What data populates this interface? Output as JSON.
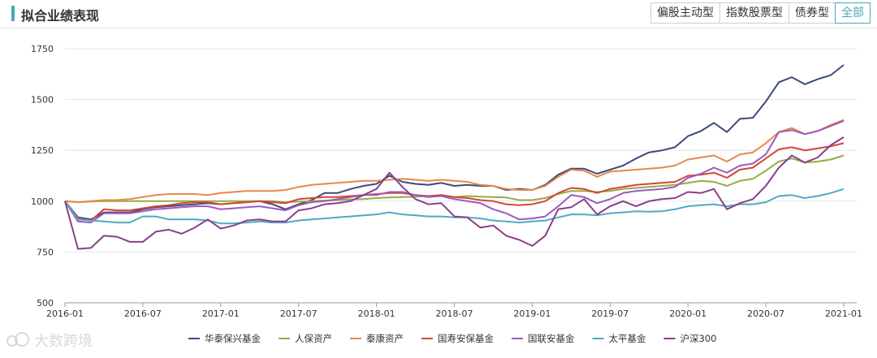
{
  "header": {
    "title": "拟合业绩表现",
    "tabs": [
      {
        "label": "偏股主动型",
        "active": false
      },
      {
        "label": "指数股票型",
        "active": false
      },
      {
        "label": "债券型",
        "active": false
      },
      {
        "label": "全部",
        "active": true
      }
    ]
  },
  "watermark": "大数跨境",
  "colors": {
    "accent": "#48a8b8",
    "grid": "#e6e6e6",
    "axis": "#333333"
  },
  "chart_data": {
    "type": "line",
    "title": "",
    "xlabel": "",
    "ylabel": "",
    "ylim": [
      500,
      1750
    ],
    "yticks": [
      500,
      750,
      1000,
      1250,
      1500,
      1750
    ],
    "xrange": [
      "2016-01",
      "2021-02"
    ],
    "xticks": [
      "2016-01",
      "2016-07",
      "2017-01",
      "2017-07",
      "2018-01",
      "2018-07",
      "2019-01",
      "2019-07",
      "2020-01",
      "2020-07",
      "2021-01"
    ],
    "grid": "horizontal",
    "legend": "bottom",
    "x": [
      "2016-01",
      "2016-02",
      "2016-03",
      "2016-04",
      "2016-05",
      "2016-06",
      "2016-07",
      "2016-08",
      "2016-09",
      "2016-10",
      "2016-11",
      "2016-12",
      "2017-01",
      "2017-02",
      "2017-03",
      "2017-04",
      "2017-05",
      "2017-06",
      "2017-07",
      "2017-08",
      "2017-09",
      "2017-10",
      "2017-11",
      "2017-12",
      "2018-01",
      "2018-02",
      "2018-03",
      "2018-04",
      "2018-05",
      "2018-06",
      "2018-07",
      "2018-08",
      "2018-09",
      "2018-10",
      "2018-11",
      "2018-12",
      "2019-01",
      "2019-02",
      "2019-03",
      "2019-04",
      "2019-05",
      "2019-06",
      "2019-07",
      "2019-08",
      "2019-09",
      "2019-10",
      "2019-11",
      "2019-12",
      "2020-01",
      "2020-02",
      "2020-03",
      "2020-04",
      "2020-05",
      "2020-06",
      "2020-07",
      "2020-08",
      "2020-09",
      "2020-10",
      "2020-11",
      "2020-12",
      "2021-01"
    ],
    "series": [
      {
        "name": "华泰保兴基金",
        "color": "#3d4a7f",
        "values": [
          1000,
          920,
          910,
          945,
          945,
          945,
          960,
          970,
          975,
          980,
          985,
          990,
          985,
          990,
          995,
          1000,
          985,
          960,
          985,
          1005,
          1040,
          1040,
          1060,
          1075,
          1085,
          1125,
          1095,
          1085,
          1080,
          1090,
          1075,
          1080,
          1075,
          1075,
          1055,
          1060,
          1055,
          1080,
          1130,
          1160,
          1160,
          1135,
          1155,
          1175,
          1210,
          1240,
          1250,
          1265,
          1320,
          1345,
          1385,
          1340,
          1405,
          1410,
          1490,
          1585,
          1610,
          1575,
          1600,
          1620,
          1670
        ]
      },
      {
        "name": "人保资产",
        "color": "#95ac40",
        "values": [
          1000,
          995,
          998,
          1000,
          1000,
          1000,
          1000,
          1000,
          1000,
          1000,
          1000,
          1000,
          1000,
          1000,
          1000,
          1000,
          1000,
          995,
          998,
          1000,
          1003,
          1005,
          1008,
          1010,
          1015,
          1018,
          1020,
          1022,
          1025,
          1025,
          1020,
          1025,
          1022,
          1020,
          1018,
          1005,
          1005,
          1015,
          1035,
          1050,
          1050,
          1045,
          1050,
          1060,
          1065,
          1070,
          1075,
          1080,
          1090,
          1100,
          1095,
          1075,
          1100,
          1110,
          1150,
          1195,
          1210,
          1190,
          1195,
          1205,
          1225
        ]
      },
      {
        "name": "泰康资产",
        "color": "#e9874a",
        "values": [
          1000,
          995,
          1000,
          1005,
          1005,
          1010,
          1020,
          1030,
          1035,
          1035,
          1035,
          1030,
          1040,
          1045,
          1050,
          1050,
          1050,
          1055,
          1070,
          1080,
          1085,
          1090,
          1095,
          1100,
          1100,
          1105,
          1110,
          1105,
          1100,
          1105,
          1100,
          1095,
          1080,
          1075,
          1060,
          1055,
          1055,
          1075,
          1120,
          1155,
          1150,
          1120,
          1145,
          1150,
          1155,
          1160,
          1165,
          1175,
          1205,
          1215,
          1225,
          1195,
          1230,
          1240,
          1285,
          1340,
          1360,
          1330,
          1345,
          1375,
          1400
        ]
      },
      {
        "name": "国寿安保基金",
        "color": "#d54535",
        "values": [
          1000,
          915,
          905,
          960,
          955,
          955,
          965,
          975,
          980,
          990,
          995,
          995,
          985,
          990,
          995,
          1000,
          995,
          990,
          1010,
          1015,
          1020,
          1020,
          1025,
          1030,
          1035,
          1040,
          1040,
          1030,
          1025,
          1030,
          1020,
          1015,
          1005,
          1000,
          985,
          980,
          985,
          1000,
          1040,
          1065,
          1060,
          1040,
          1060,
          1070,
          1080,
          1085,
          1090,
          1095,
          1125,
          1130,
          1140,
          1115,
          1155,
          1165,
          1210,
          1255,
          1265,
          1250,
          1260,
          1270,
          1285
        ]
      },
      {
        "name": "国联安基金",
        "color": "#9b5ac0",
        "values": [
          1000,
          900,
          895,
          940,
          940,
          940,
          950,
          960,
          965,
          970,
          975,
          975,
          960,
          965,
          970,
          975,
          965,
          955,
          980,
          995,
          1000,
          1010,
          1020,
          1030,
          1030,
          1045,
          1045,
          1030,
          1020,
          1025,
          1010,
          1000,
          990,
          960,
          940,
          910,
          915,
          925,
          975,
          1030,
          1020,
          990,
          1010,
          1040,
          1050,
          1055,
          1060,
          1070,
          1115,
          1135,
          1165,
          1140,
          1175,
          1185,
          1230,
          1340,
          1350,
          1330,
          1345,
          1370,
          1395
        ]
      },
      {
        "name": "太平基金",
        "color": "#4eaac2",
        "values": [
          1000,
          910,
          905,
          900,
          895,
          895,
          925,
          925,
          910,
          910,
          910,
          905,
          890,
          890,
          895,
          900,
          895,
          895,
          905,
          910,
          915,
          920,
          925,
          930,
          935,
          945,
          935,
          930,
          925,
          925,
          920,
          920,
          915,
          905,
          900,
          895,
          900,
          905,
          920,
          935,
          935,
          930,
          940,
          945,
          950,
          948,
          950,
          960,
          975,
          980,
          985,
          975,
          985,
          985,
          995,
          1025,
          1030,
          1015,
          1025,
          1040,
          1060
        ]
      },
      {
        "name": "沪深300",
        "color": "#8a3f8b",
        "values": [
          1000,
          765,
          770,
          830,
          825,
          800,
          800,
          850,
          860,
          840,
          870,
          910,
          865,
          880,
          905,
          910,
          900,
          900,
          955,
          965,
          985,
          990,
          1000,
          1030,
          1060,
          1140,
          1070,
          1010,
          985,
          990,
          925,
          920,
          870,
          880,
          830,
          810,
          780,
          830,
          960,
          970,
          1010,
          935,
          975,
          1000,
          975,
          1000,
          1010,
          1015,
          1045,
          1040,
          1060,
          960,
          990,
          1010,
          1075,
          1165,
          1225,
          1190,
          1215,
          1275,
          1315
        ]
      }
    ]
  }
}
